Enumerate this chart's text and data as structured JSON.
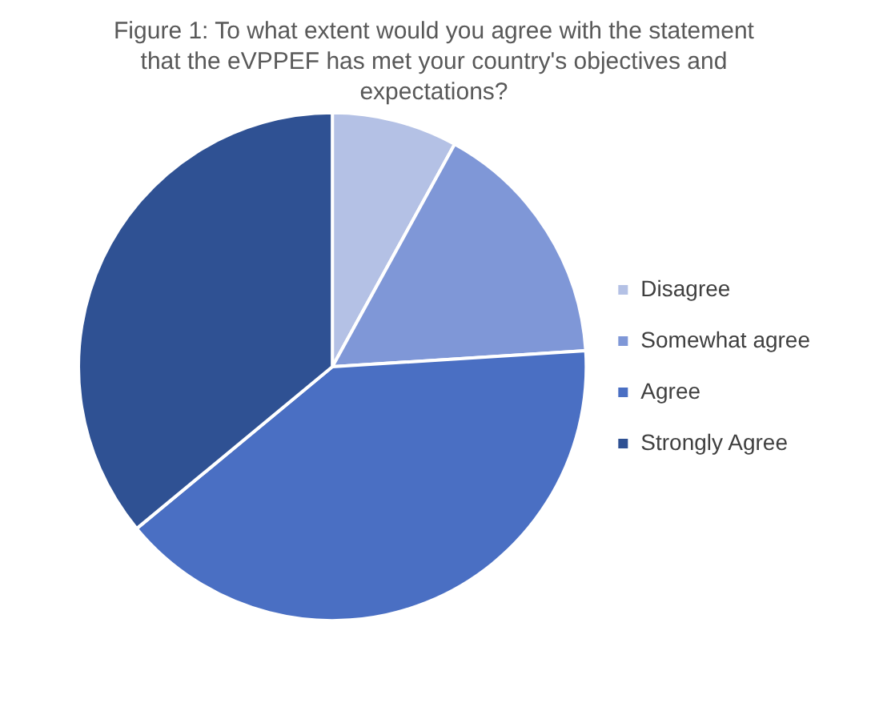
{
  "chart_data": {
    "type": "pie",
    "title": "Figure 1: To what extent would you agree with the statement that the eVPPEF has met your country's objectives and expectations?",
    "categories": [
      "Disagree",
      "Somewhat agree",
      "Agree",
      "Strongly Agree"
    ],
    "values": [
      8,
      16,
      40,
      36
    ],
    "colors": [
      "#b4c1e5",
      "#7f97d7",
      "#4a6fc3",
      "#2f5193"
    ],
    "legend": "right"
  }
}
